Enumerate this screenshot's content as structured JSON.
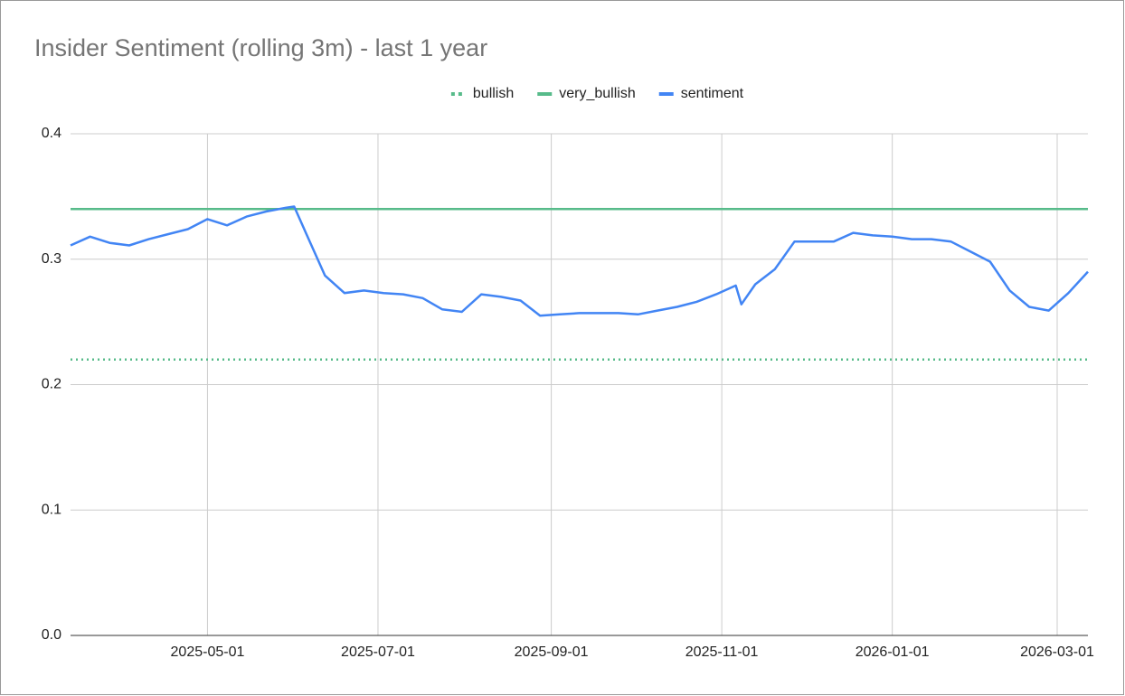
{
  "chart_data": {
    "type": "line",
    "title": "Insider Sentiment (rolling 3m) - last 1 year",
    "x": [
      "2025-03-13",
      "2025-03-20",
      "2025-03-27",
      "2025-04-03",
      "2025-04-10",
      "2025-04-17",
      "2025-04-24",
      "2025-05-01",
      "2025-05-08",
      "2025-05-15",
      "2025-05-22",
      "2025-05-29",
      "2025-06-01",
      "2025-06-05",
      "2025-06-12",
      "2025-06-19",
      "2025-06-26",
      "2025-07-03",
      "2025-07-10",
      "2025-07-17",
      "2025-07-24",
      "2025-07-31",
      "2025-08-07",
      "2025-08-14",
      "2025-08-21",
      "2025-08-28",
      "2025-09-04",
      "2025-09-11",
      "2025-09-18",
      "2025-09-25",
      "2025-10-02",
      "2025-10-09",
      "2025-10-16",
      "2025-10-23",
      "2025-10-30",
      "2025-11-06",
      "2025-11-08",
      "2025-11-13",
      "2025-11-20",
      "2025-11-27",
      "2025-12-04",
      "2025-12-11",
      "2025-12-18",
      "2025-12-25",
      "2026-01-01",
      "2026-01-08",
      "2026-01-15",
      "2026-01-22",
      "2026-01-29",
      "2026-02-05",
      "2026-02-12",
      "2026-02-19",
      "2026-02-26",
      "2026-03-05",
      "2026-03-12"
    ],
    "series": [
      {
        "name": "bullish",
        "color": "#57bb8a",
        "dash": "dotted",
        "values": [
          0.22,
          0.22,
          0.22,
          0.22,
          0.22,
          0.22,
          0.22,
          0.22,
          0.22,
          0.22,
          0.22,
          0.22,
          0.22,
          0.22,
          0.22,
          0.22,
          0.22,
          0.22,
          0.22,
          0.22,
          0.22,
          0.22,
          0.22,
          0.22,
          0.22,
          0.22,
          0.22,
          0.22,
          0.22,
          0.22,
          0.22,
          0.22,
          0.22,
          0.22,
          0.22,
          0.22,
          0.22,
          0.22,
          0.22,
          0.22,
          0.22,
          0.22,
          0.22,
          0.22,
          0.22,
          0.22,
          0.22,
          0.22,
          0.22,
          0.22,
          0.22,
          0.22,
          0.22,
          0.22,
          0.22
        ]
      },
      {
        "name": "very_bullish",
        "color": "#57bb8a",
        "dash": "solid",
        "values": [
          0.34,
          0.34,
          0.34,
          0.34,
          0.34,
          0.34,
          0.34,
          0.34,
          0.34,
          0.34,
          0.34,
          0.34,
          0.34,
          0.34,
          0.34,
          0.34,
          0.34,
          0.34,
          0.34,
          0.34,
          0.34,
          0.34,
          0.34,
          0.34,
          0.34,
          0.34,
          0.34,
          0.34,
          0.34,
          0.34,
          0.34,
          0.34,
          0.34,
          0.34,
          0.34,
          0.34,
          0.34,
          0.34,
          0.34,
          0.34,
          0.34,
          0.34,
          0.34,
          0.34,
          0.34,
          0.34,
          0.34,
          0.34,
          0.34,
          0.34,
          0.34,
          0.34,
          0.34,
          0.34,
          0.34
        ]
      },
      {
        "name": "sentiment",
        "color": "#4285f4",
        "dash": "solid",
        "values": [
          0.311,
          0.318,
          0.313,
          0.311,
          0.316,
          0.32,
          0.324,
          0.332,
          0.327,
          0.334,
          0.338,
          0.341,
          0.342,
          0.322,
          0.287,
          0.273,
          0.275,
          0.273,
          0.272,
          0.269,
          0.26,
          0.258,
          0.272,
          0.27,
          0.267,
          0.255,
          0.256,
          0.257,
          0.257,
          0.257,
          0.256,
          0.259,
          0.262,
          0.266,
          0.272,
          0.279,
          0.264,
          0.28,
          0.292,
          0.314,
          0.314,
          0.314,
          0.321,
          0.319,
          0.318,
          0.316,
          0.316,
          0.314,
          0.306,
          0.298,
          0.275,
          0.262,
          0.259,
          0.273,
          0.29
        ]
      }
    ],
    "xlim": [
      "2025-03-13",
      "2026-03-12"
    ],
    "xticks": [
      "2025-05-01",
      "2025-07-01",
      "2025-09-01",
      "2025-11-01",
      "2026-01-01",
      "2026-03-01"
    ],
    "ylim": [
      0,
      0.4
    ],
    "yticks": [
      {
        "value": 0,
        "label": "0.0"
      },
      0.1,
      0.2,
      0.3,
      0.4
    ],
    "grid": true,
    "legend": "top"
  }
}
